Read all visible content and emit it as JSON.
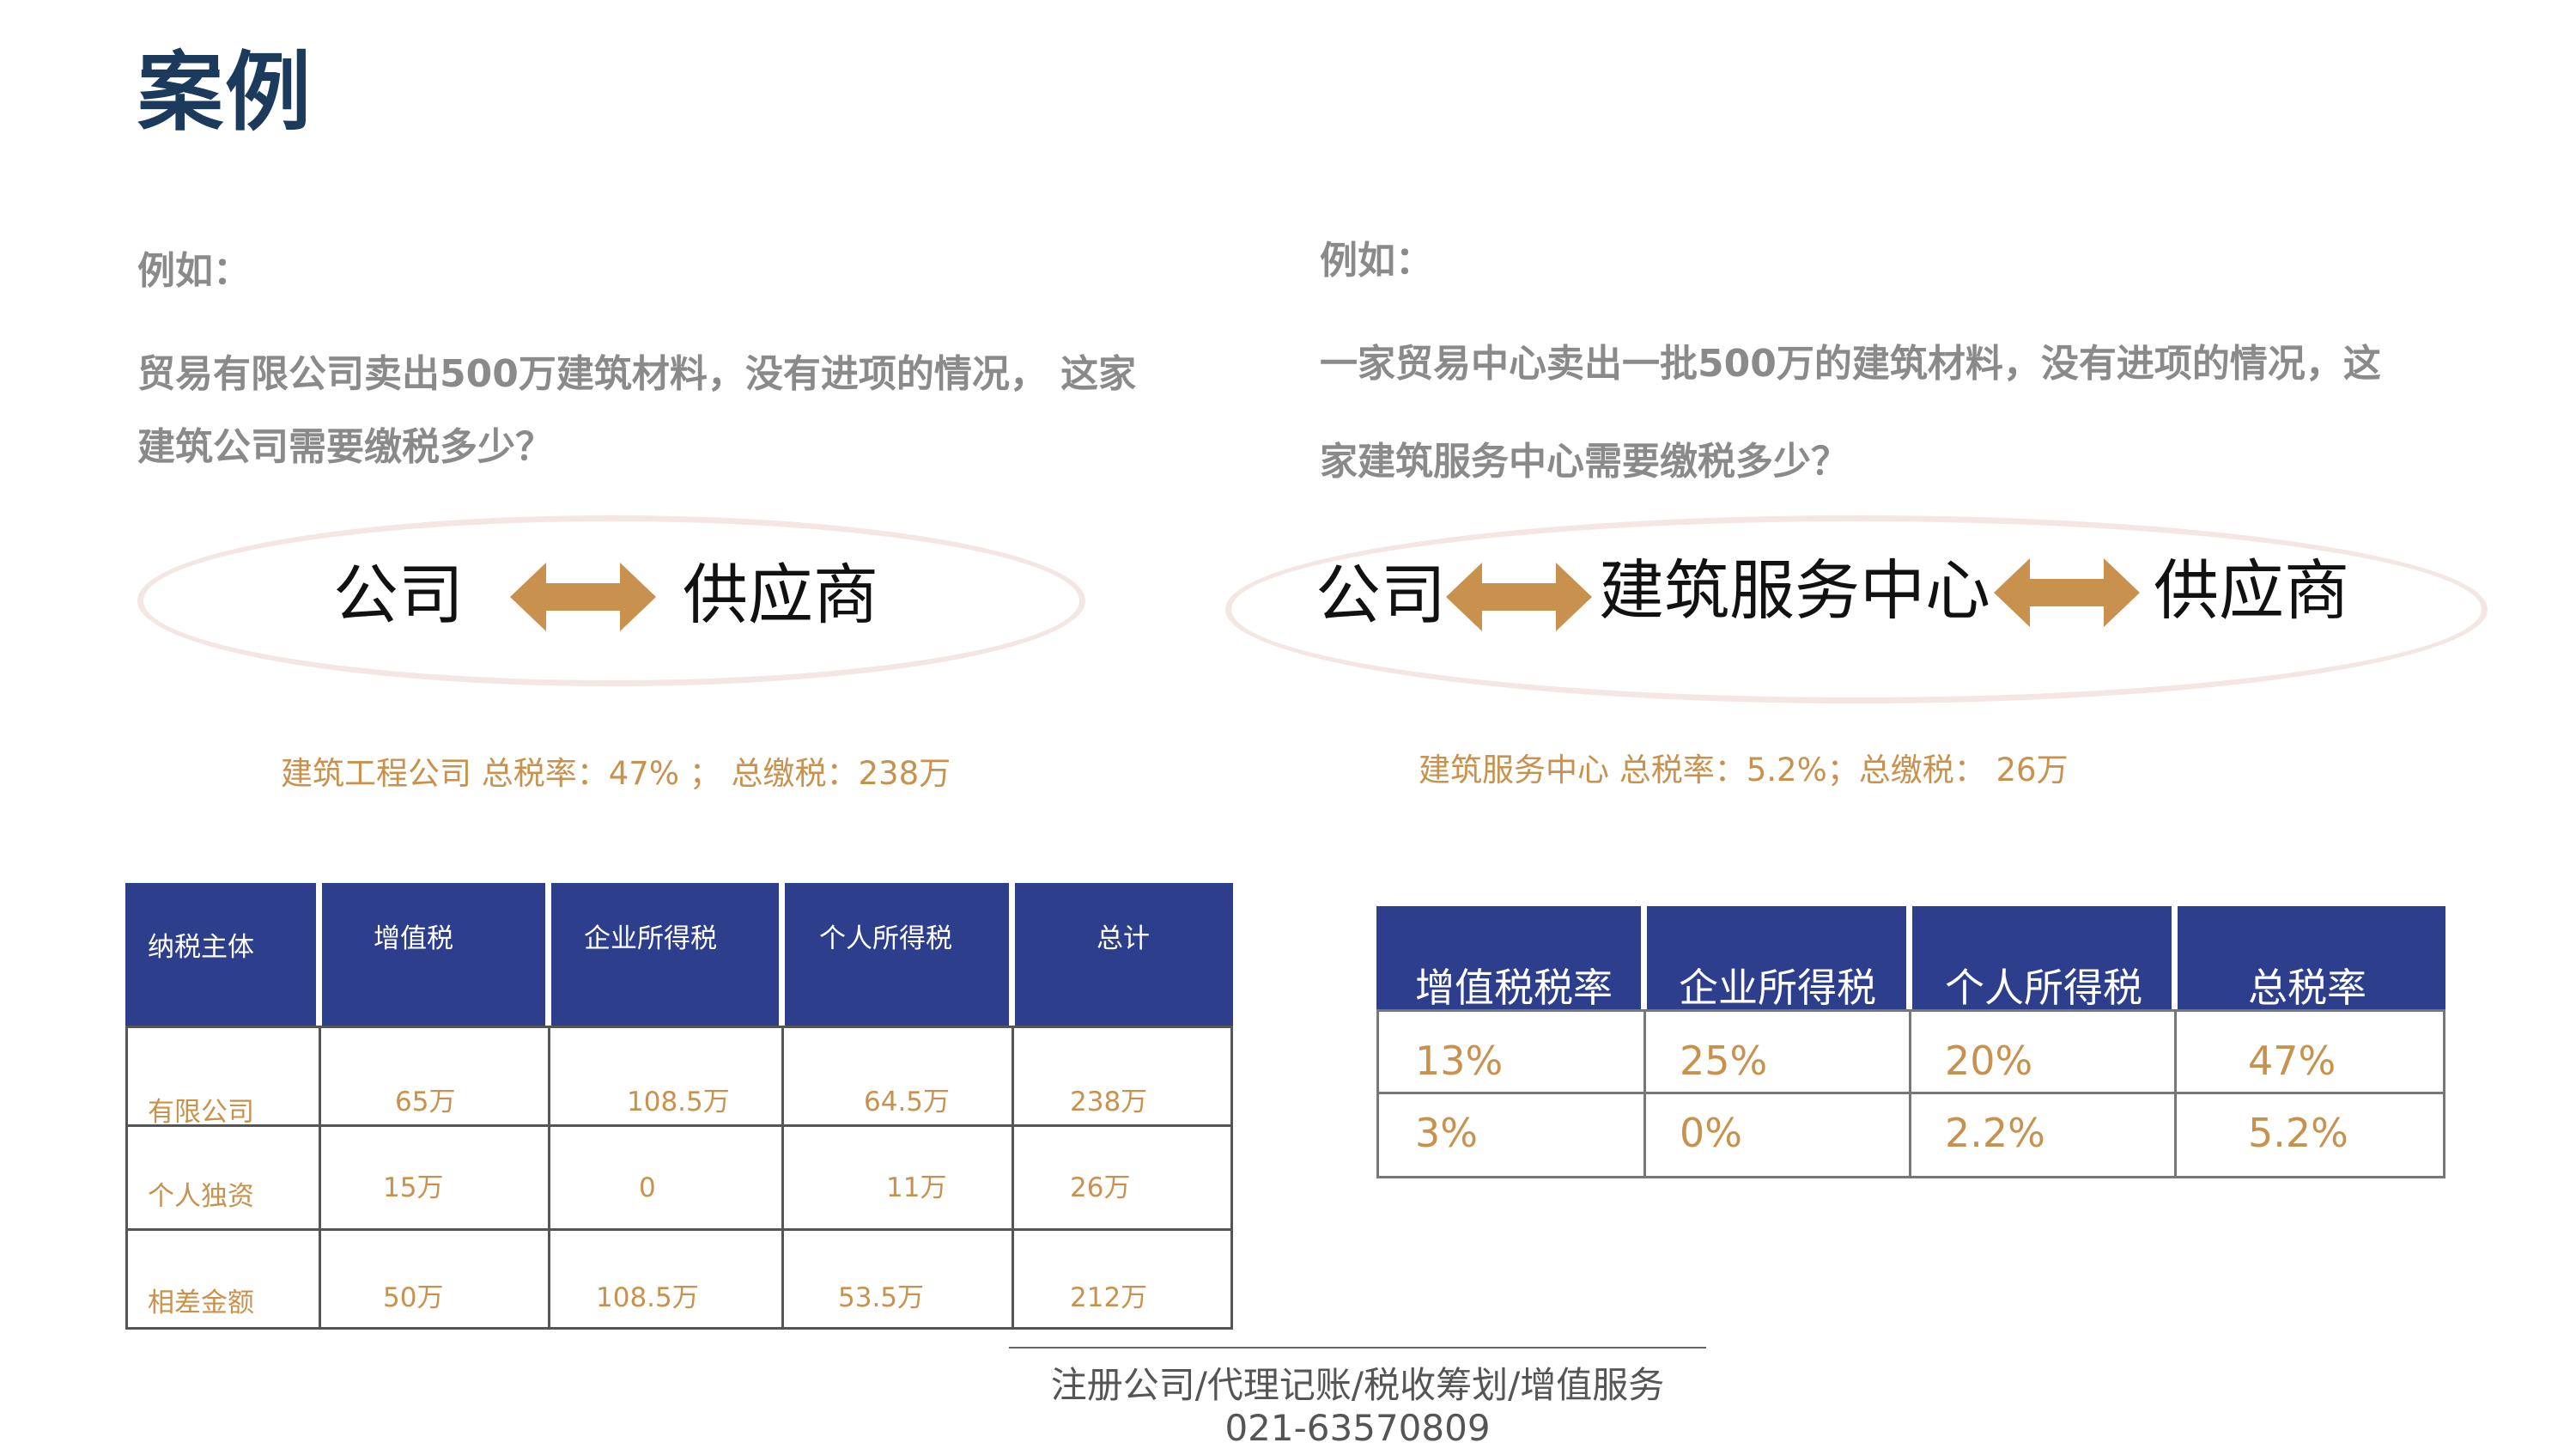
{
  "title": "案例",
  "left": {
    "example_label": "例如：",
    "question_line1": "贸易有限公司卖出500万建筑材料，没有进项的情况， 这家",
    "question_line2": "建筑公司需要缴税多少？",
    "flow": [
      "公司",
      "供应商"
    ],
    "summary": "建筑工程公司 总税率：47% ； 总缴税：238万",
    "table": {
      "headers": [
        "纳税主体",
        "增值税",
        "企业所得税",
        "个人所得税",
        "总计"
      ],
      "rows": [
        [
          "有限公司",
          "65万",
          "108.5万",
          "64.5万",
          "238万"
        ],
        [
          "个人独资",
          "15万",
          "0",
          "11万",
          "26万"
        ],
        [
          "相差金额",
          "50万",
          "108.5万",
          "53.5万",
          "212万"
        ]
      ]
    }
  },
  "right": {
    "example_label": "例如：",
    "question_line1": "一家贸易中心卖出一批500万的建筑材料，没有进项的情况，这",
    "question_line2": "家建筑服务中心需要缴税多少？",
    "flow": [
      "公司",
      "建筑服务中心",
      "供应商"
    ],
    "summary": "建筑服务中心 总税率：5.2%；总缴税： 26万",
    "table": {
      "headers": [
        "增值税税率",
        "企业所得税",
        "个人所得税",
        "总税率"
      ],
      "rows": [
        [
          "13%",
          "25%",
          "20%",
          "47%"
        ],
        [
          "3%",
          "0%",
          "2.2%",
          "5.2%"
        ]
      ]
    }
  },
  "footer": {
    "services": "注册公司/代理记账/税收筹划/增值服务",
    "phone": "021-63570809"
  },
  "colors": {
    "title": "#1b3a5c",
    "table_header": "#2c3e8c",
    "accent_gold": "#c8924e",
    "question_gray": "#8a8a8a",
    "ellipse": "#f3e6e3"
  }
}
